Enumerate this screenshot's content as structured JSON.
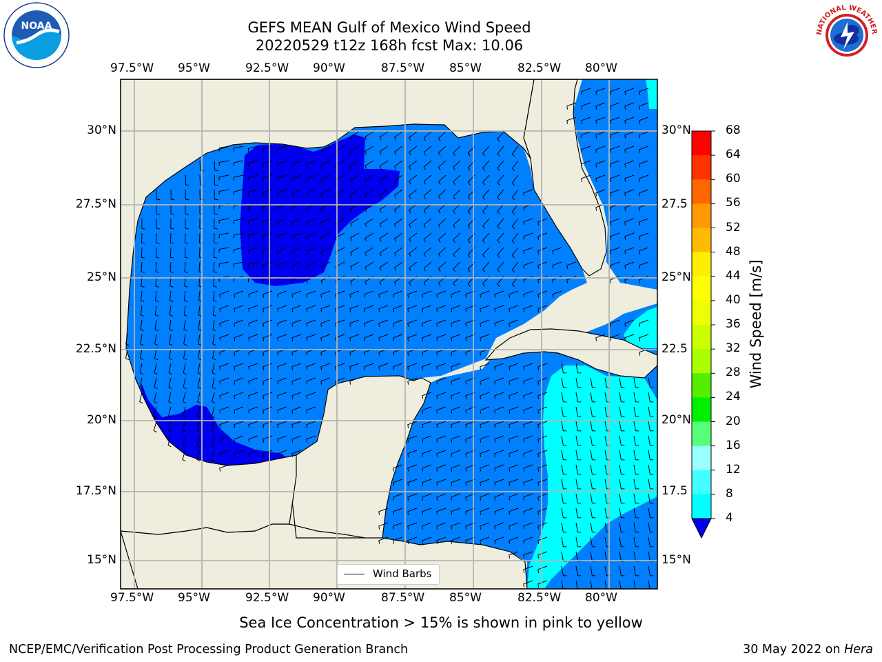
{
  "title": {
    "line1": "GEFS MEAN Gulf of Mexico Wind Speed",
    "line2": "20220529 t12z 168h fcst   Max: 10.06"
  },
  "map": {
    "lon_labels": [
      "97.5°W",
      "95°W",
      "92.5°W",
      "90°W",
      "87.5°W",
      "85°W",
      "82.5°W",
      "80°W"
    ],
    "lat_labels_left": [
      "30°N",
      "27.5°N",
      "25°N",
      "22.5°N",
      "20°N",
      "17.5°N",
      "15°N"
    ],
    "lat_labels_right": [
      "30°N",
      "27.5",
      "25°N",
      "22.5",
      "20°N",
      "17.5",
      "15°N"
    ],
    "legend_label": "Wind Barbs",
    "colors": {
      "land": "#efedde",
      "ws_4_8": "#0080ff",
      "ws_below_4": "#0000ee",
      "ws_8_12": "#00ffff",
      "grid": "#b4b4b4"
    }
  },
  "colorbar": {
    "title": "Wind Speed [m/s]",
    "ticks": [
      "68",
      "64",
      "60",
      "56",
      "52",
      "48",
      "44",
      "40",
      "36",
      "32",
      "28",
      "24",
      "20",
      "16",
      "12",
      "8",
      "4"
    ],
    "colors": [
      "#ff0000",
      "#ff3300",
      "#ff6600",
      "#ff9900",
      "#ffbb00",
      "#ffee00",
      "#ffff00",
      "#eeff00",
      "#ccff00",
      "#aaff00",
      "#55ee00",
      "#00ee00",
      "#55ff77",
      "#99ffff",
      "#44ffff",
      "#00ffff",
      "#0077ff",
      "#0000ee"
    ]
  },
  "note": "Sea Ice Concentration > 15% is shown in pink to yellow",
  "footer": {
    "left": "NCEP/EMC/Verification Post Processing Product Generation Branch",
    "right_date": "30 May 2022 on ",
    "right_host": "Hera"
  },
  "logos": {
    "noaa_text": "NOAA",
    "nws_text": "NATIONAL WEATHER SERVICE"
  }
}
